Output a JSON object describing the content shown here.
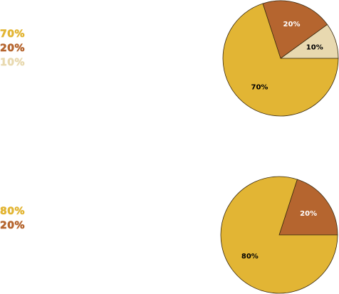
{
  "chart_data": [
    {
      "type": "pie",
      "slices": [
        {
          "label": "70%",
          "value": 70,
          "color": "#e2b534"
        },
        {
          "label": "20%",
          "value": 20,
          "color": "#b5652f"
        },
        {
          "label": "10%",
          "value": 10,
          "color": "#e8d9b0"
        }
      ],
      "legend": [
        "70%",
        "20%",
        "10%"
      ],
      "label_colors": [
        "#000000",
        "#ffffff",
        "#000000"
      ]
    },
    {
      "type": "pie",
      "slices": [
        {
          "label": "80%",
          "value": 80,
          "color": "#e2b534"
        },
        {
          "label": "20%",
          "value": 20,
          "color": "#b5652f"
        }
      ],
      "legend": [
        "80%",
        "20%"
      ],
      "label_colors": [
        "#000000",
        "#ffffff"
      ]
    }
  ]
}
